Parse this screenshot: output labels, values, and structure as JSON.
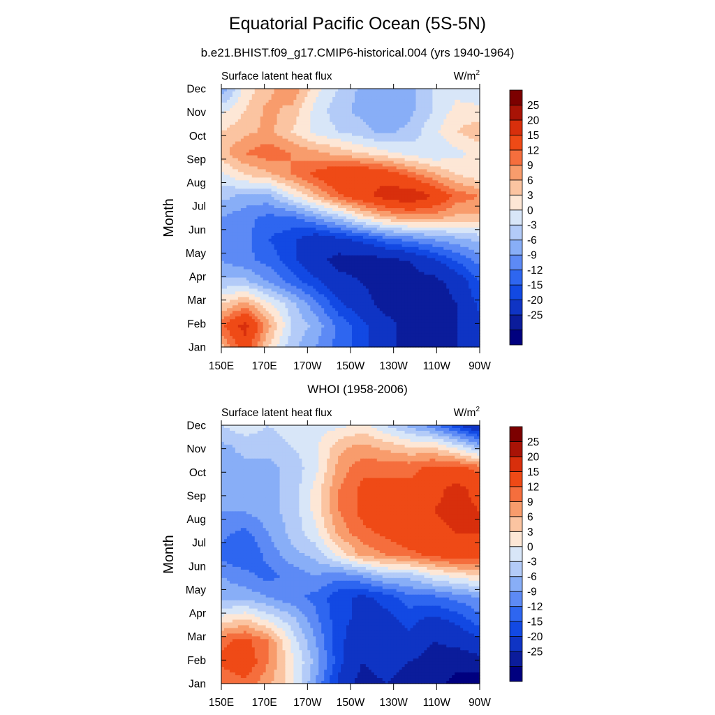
{
  "title": "Equatorial Pacific Ocean (5S-5N)",
  "chart_data": [
    {
      "type": "heatmap",
      "subtitle": "b.e21.BHIST.f09_g17.CMIP6-historical.004 (yrs 1940-1964)",
      "left_label": "Surface latent heat flux",
      "right_label": "W/m",
      "right_label_sup": "2",
      "ylabel": "Month",
      "xlabel": "",
      "x_ticks": [
        "150E",
        "170E",
        "170W",
        "150W",
        "130W",
        "110W",
        "90W"
      ],
      "y_ticks": [
        "Jan",
        "Feb",
        "Mar",
        "Apr",
        "May",
        "Jun",
        "Jul",
        "Aug",
        "Sep",
        "Oct",
        "Nov",
        "Dec"
      ],
      "x_lons": [
        150,
        170,
        190,
        210,
        230,
        250,
        270
      ],
      "grid": [
        [
          8,
          18,
          6,
          -2,
          -6,
          -10,
          -14,
          -18,
          -22,
          -22,
          -20,
          -16
        ],
        [
          14,
          22,
          10,
          0,
          -4,
          -10,
          -14,
          -18,
          -22,
          -24,
          -20,
          -16
        ],
        [
          6,
          10,
          4,
          -2,
          -8,
          -14,
          -18,
          -22,
          -24,
          -24,
          -20,
          -14
        ],
        [
          -2,
          -2,
          -6,
          -10,
          -14,
          -18,
          -20,
          -22,
          -22,
          -22,
          -18,
          -12
        ],
        [
          -6,
          -8,
          -10,
          -14,
          -18,
          -22,
          -22,
          -22,
          -20,
          -16,
          -12,
          -8
        ],
        [
          -8,
          -8,
          -12,
          -14,
          -18,
          -16,
          -14,
          -10,
          -8,
          -6,
          -4,
          -2
        ],
        [
          -6,
          -8,
          -10,
          -10,
          -6,
          -2,
          4,
          8,
          10,
          10,
          8,
          8
        ],
        [
          -2,
          -4,
          -4,
          2,
          8,
          14,
          18,
          22,
          24,
          20,
          14,
          12
        ],
        [
          2,
          6,
          8,
          12,
          16,
          20,
          20,
          18,
          14,
          10,
          6,
          4
        ],
        [
          8,
          12,
          14,
          12,
          10,
          8,
          6,
          4,
          2,
          0,
          2,
          4
        ],
        [
          6,
          8,
          10,
          6,
          2,
          0,
          -2,
          -4,
          -2,
          2,
          6,
          8
        ],
        [
          2,
          6,
          10,
          8,
          2,
          -2,
          -4,
          -6,
          -4,
          0,
          4,
          4
        ],
        [
          -6,
          4,
          8,
          12,
          4,
          0,
          -4,
          -6,
          -4,
          0,
          2,
          0
        ]
      ],
      "levels": [
        -25,
        -20,
        -15,
        -12,
        -9,
        -6,
        -3,
        0,
        3,
        6,
        9,
        12,
        15,
        20,
        25
      ],
      "level_labels": [
        "25",
        "20",
        "15",
        "12",
        "9",
        "6",
        "3",
        "0",
        "-3",
        "-6",
        "-9",
        "-12",
        "-15",
        "-20",
        "-25"
      ],
      "colors": [
        "#00007f",
        "#0b1c9b",
        "#0f34c4",
        "#1249e3",
        "#2e66f0",
        "#5d8af5",
        "#88aef7",
        "#b3cbf8",
        "#d8e6f8",
        "#fde7d6",
        "#fbc4a1",
        "#f89c6c",
        "#f56e3d",
        "#ef4a16",
        "#d82f0c",
        "#a81306",
        "#7c0000"
      ]
    },
    {
      "type": "heatmap",
      "subtitle": "WHOI (1958-2006)",
      "left_label": "Surface latent heat flux",
      "right_label": "W/m",
      "right_label_sup": "2",
      "ylabel": "Month",
      "xlabel": "",
      "x_ticks": [
        "150E",
        "170E",
        "170W",
        "150W",
        "130W",
        "110W",
        "90W"
      ],
      "y_ticks": [
        "Jan",
        "Feb",
        "Mar",
        "Apr",
        "May",
        "Jun",
        "Jul",
        "Aug",
        "Sep",
        "Oct",
        "Nov",
        "Dec"
      ],
      "x_lons": [
        150,
        170,
        190,
        210,
        230,
        250,
        270
      ],
      "grid": [
        [
          12,
          14,
          10,
          4,
          -6,
          -16,
          -22,
          -20,
          -22,
          -24,
          -26,
          -28
        ],
        [
          16,
          18,
          12,
          4,
          -4,
          -14,
          -20,
          -18,
          -20,
          -22,
          -24,
          -22
        ],
        [
          14,
          16,
          12,
          2,
          -6,
          -14,
          -18,
          -18,
          -16,
          -20,
          -18,
          -16
        ],
        [
          4,
          6,
          2,
          -2,
          -8,
          -14,
          -16,
          -16,
          -14,
          -16,
          -14,
          -10
        ],
        [
          -4,
          -4,
          -6,
          -8,
          -10,
          -14,
          -16,
          -14,
          -10,
          -10,
          -8,
          -6
        ],
        [
          -6,
          -8,
          -10,
          -8,
          -6,
          -8,
          -6,
          -2,
          -2,
          2,
          4,
          6
        ],
        [
          -10,
          -12,
          -8,
          -4,
          -2,
          4,
          10,
          12,
          14,
          16,
          18,
          18
        ],
        [
          -8,
          -10,
          -6,
          -2,
          2,
          10,
          14,
          16,
          18,
          18,
          20,
          20
        ],
        [
          -6,
          -6,
          -4,
          -2,
          4,
          12,
          16,
          18,
          18,
          20,
          22,
          20
        ],
        [
          -4,
          -6,
          -4,
          -2,
          4,
          12,
          16,
          16,
          16,
          18,
          22,
          18
        ],
        [
          -4,
          -4,
          -4,
          -2,
          2,
          10,
          14,
          14,
          14,
          16,
          16,
          14
        ],
        [
          -4,
          -2,
          -2,
          0,
          2,
          8,
          10,
          8,
          6,
          6,
          2,
          -4
        ],
        [
          0,
          2,
          0,
          2,
          2,
          2,
          4,
          0,
          -4,
          -8,
          -14,
          -20
        ]
      ],
      "levels": [
        -25,
        -20,
        -15,
        -12,
        -9,
        -6,
        -3,
        0,
        3,
        6,
        9,
        12,
        15,
        20,
        25
      ],
      "level_labels": [
        "25",
        "20",
        "15",
        "12",
        "9",
        "6",
        "3",
        "0",
        "-3",
        "-6",
        "-9",
        "-12",
        "-15",
        "-20",
        "-25"
      ],
      "colors": [
        "#00007f",
        "#0b1c9b",
        "#0f34c4",
        "#1249e3",
        "#2e66f0",
        "#5d8af5",
        "#88aef7",
        "#b3cbf8",
        "#d8e6f8",
        "#fde7d6",
        "#fbc4a1",
        "#f89c6c",
        "#f56e3d",
        "#ef4a16",
        "#d82f0c",
        "#a81306",
        "#7c0000"
      ]
    }
  ]
}
